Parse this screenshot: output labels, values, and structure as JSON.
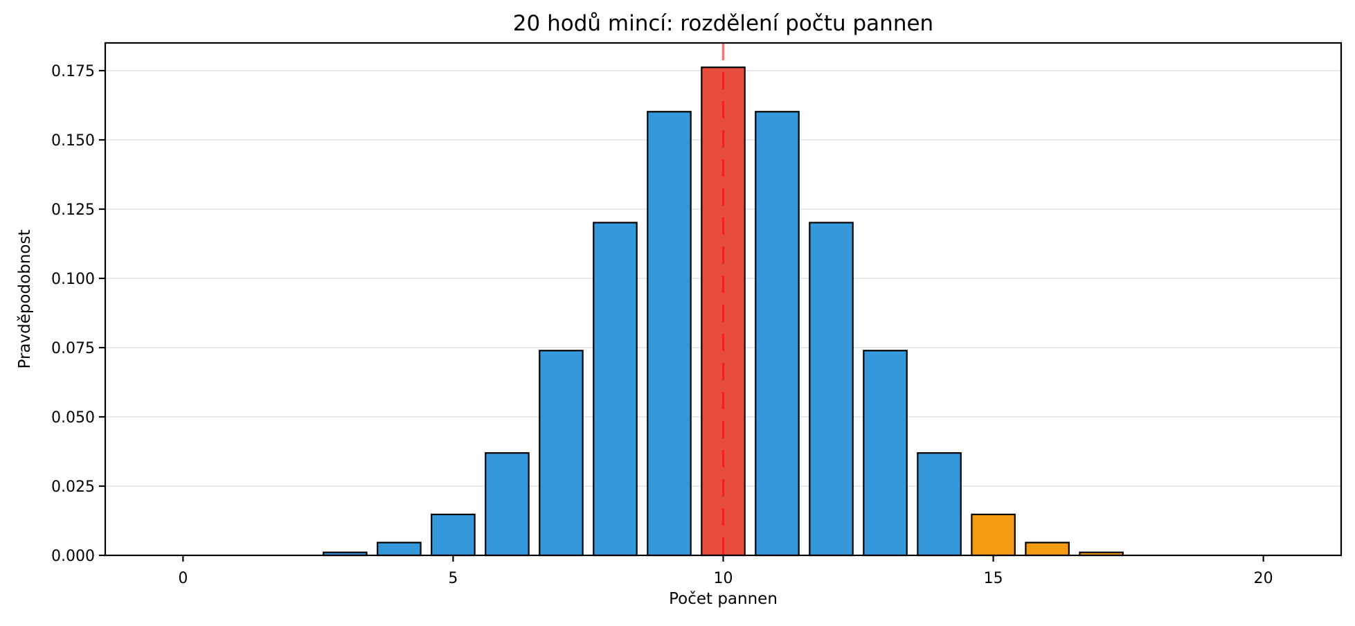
{
  "chart_data": {
    "type": "bar",
    "title": "20 hodů mincí: rozdělení počtu pannen",
    "xlabel": "Počet pannen",
    "ylabel": "Pravděpodobnost",
    "categories": [
      0,
      1,
      2,
      3,
      4,
      5,
      6,
      7,
      8,
      9,
      10,
      11,
      12,
      13,
      14,
      15,
      16,
      17,
      18,
      19,
      20
    ],
    "values": [
      1e-06,
      1.9e-05,
      0.000181,
      0.001087,
      0.004621,
      0.014786,
      0.036964,
      0.073929,
      0.120134,
      0.160179,
      0.176197,
      0.160179,
      0.120134,
      0.073929,
      0.036964,
      0.014786,
      0.004621,
      0.001087,
      0.000181,
      1.9e-05,
      1e-06
    ],
    "bar_width": 0.8,
    "bar_color_default": "#3498db",
    "bar_color_overrides": {
      "10": "#e74c3c",
      "15": "#f39c12",
      "16": "#f39c12",
      "17": "#f39c12"
    },
    "bar_edge_color": "#000000",
    "vline": {
      "x": 10,
      "color": "#ff0000",
      "opacity": 0.55,
      "style": "dashed"
    },
    "xticks": [
      {
        "value": 0,
        "label": "0"
      },
      {
        "value": 5,
        "label": "5"
      },
      {
        "value": 10,
        "label": "10"
      },
      {
        "value": 15,
        "label": "15"
      },
      {
        "value": 20,
        "label": "20"
      }
    ],
    "yticks": [
      {
        "value": 0.0,
        "label": "0.000"
      },
      {
        "value": 0.025,
        "label": "0.025"
      },
      {
        "value": 0.05,
        "label": "0.050"
      },
      {
        "value": 0.075,
        "label": "0.075"
      },
      {
        "value": 0.1,
        "label": "0.100"
      },
      {
        "value": 0.125,
        "label": "0.125"
      },
      {
        "value": 0.15,
        "label": "0.150"
      },
      {
        "value": 0.175,
        "label": "0.175"
      }
    ],
    "xlim": [
      -1.44,
      21.44
    ],
    "ylim": [
      0,
      0.185
    ],
    "grid": "horizontal",
    "grid_color": "#e8e8e8",
    "spine_color": "#000000",
    "tick_color": "#000000",
    "text_color": "#000000",
    "background": "#ffffff",
    "legend": null
  }
}
